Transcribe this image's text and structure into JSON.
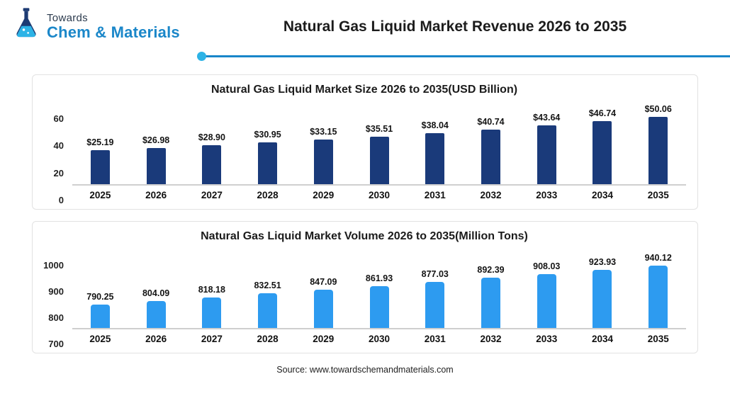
{
  "brand": {
    "name_top": "Towards",
    "name_bottom": "Chem & Materials",
    "accent_dark": "#1d3b73",
    "accent_light": "#1b87c9"
  },
  "header": {
    "title": "Natural Gas Liquid Market Revenue 2026 to 2035"
  },
  "footer": {
    "source": "Source: www.towardschemandmaterials.com"
  },
  "chart_data": [
    {
      "type": "bar",
      "title": "Natural Gas Liquid Market Size 2026 to 2035(USD Billion)",
      "categories": [
        "2025",
        "2026",
        "2027",
        "2028",
        "2029",
        "2030",
        "2031",
        "2032",
        "2033",
        "2034",
        "2035"
      ],
      "values": [
        25.19,
        26.98,
        28.9,
        30.95,
        33.15,
        35.51,
        38.04,
        40.74,
        43.64,
        46.74,
        50.06
      ],
      "value_labels": [
        "$25.19",
        "$26.98",
        "$28.90",
        "$30.95",
        "$33.15",
        "$35.51",
        "$38.04",
        "$40.74",
        "$43.64",
        "$46.74",
        "$50.06"
      ],
      "xlabel": "",
      "ylabel": "",
      "ylim": [
        0,
        60
      ],
      "yticks": [
        0,
        20,
        40,
        60
      ],
      "grid": false,
      "legend": false,
      "bar_color": "#1a3a7a",
      "bar_radius": "2px 2px 0 0"
    },
    {
      "type": "bar",
      "title": "Natural Gas Liquid Market Volume 2026 to 2035(Million Tons)",
      "categories": [
        "2025",
        "2026",
        "2027",
        "2028",
        "2029",
        "2030",
        "2031",
        "2032",
        "2033",
        "2034",
        "2035"
      ],
      "values": [
        790.25,
        804.09,
        818.18,
        832.51,
        847.09,
        861.93,
        877.03,
        892.39,
        908.03,
        923.93,
        940.12
      ],
      "value_labels": [
        "790.25",
        "804.09",
        "818.18",
        "832.51",
        "847.09",
        "861.93",
        "877.03",
        "892.39",
        "908.03",
        "923.93",
        "940.12"
      ],
      "xlabel": "",
      "ylabel": "",
      "ylim": [
        700,
        1000
      ],
      "yticks": [
        700,
        800,
        900,
        1000
      ],
      "grid": false,
      "legend": false,
      "bar_color": "#2d9bf0",
      "bar_radius": "4px 4px 0 0"
    }
  ]
}
